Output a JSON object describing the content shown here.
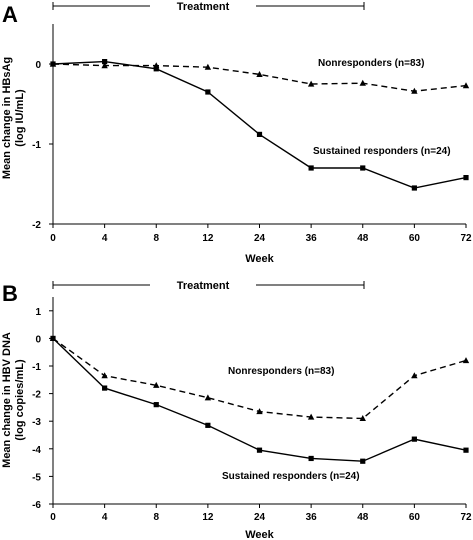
{
  "chart_data": [
    {
      "type": "line",
      "panel": "A",
      "treatment_label": "Treatment",
      "treatment_span": [
        0,
        48
      ],
      "xlabel": "Week",
      "ylabel": [
        "Mean change in HBsAg",
        "(log IU/mL)"
      ],
      "categories": [
        "0",
        "4",
        "8",
        "12",
        "24",
        "36",
        "48",
        "60",
        "72"
      ],
      "ylim": [
        -2,
        0.5
      ],
      "yticks": [
        -2,
        -1,
        0
      ],
      "ytick_labels": [
        "-2",
        "-1",
        "0"
      ],
      "series": [
        {
          "name": "Nonresponders (n=83)",
          "marker": "triangle",
          "style": "dashed",
          "values": [
            0,
            -0.02,
            -0.02,
            -0.04,
            -0.13,
            -0.25,
            -0.24,
            -0.34,
            -0.27
          ]
        },
        {
          "name": "Sustained responders (n=24)",
          "marker": "square",
          "style": "solid",
          "values": [
            0,
            0.03,
            -0.06,
            -0.35,
            -0.88,
            -1.3,
            -1.3,
            -1.55,
            -1.42
          ]
        }
      ]
    },
    {
      "type": "line",
      "panel": "B",
      "treatment_label": "Treatment",
      "treatment_span": [
        0,
        48
      ],
      "xlabel": "Week",
      "ylabel": [
        "Mean change in HBV DNA",
        "(log copies/mL)"
      ],
      "categories": [
        "0",
        "4",
        "8",
        "12",
        "24",
        "36",
        "48",
        "60",
        "72"
      ],
      "ylim": [
        -6,
        1.5
      ],
      "yticks": [
        -6,
        -5,
        -4,
        -3,
        -2,
        -1,
        0,
        1
      ],
      "ytick_labels": [
        "-6",
        "-5",
        "-4",
        "-3",
        "-2",
        "-1",
        "0",
        "1"
      ],
      "series": [
        {
          "name": "Nonresponders (n=83)",
          "marker": "triangle",
          "style": "dashed",
          "values": [
            0,
            -1.35,
            -1.7,
            -2.15,
            -2.65,
            -2.85,
            -2.9,
            -1.35,
            -0.8
          ]
        },
        {
          "name": "Sustained responders (n=24)",
          "marker": "square",
          "style": "solid",
          "values": [
            0,
            -1.8,
            -2.4,
            -3.15,
            -4.05,
            -4.35,
            -4.45,
            -3.65,
            -4.05
          ]
        }
      ]
    }
  ]
}
